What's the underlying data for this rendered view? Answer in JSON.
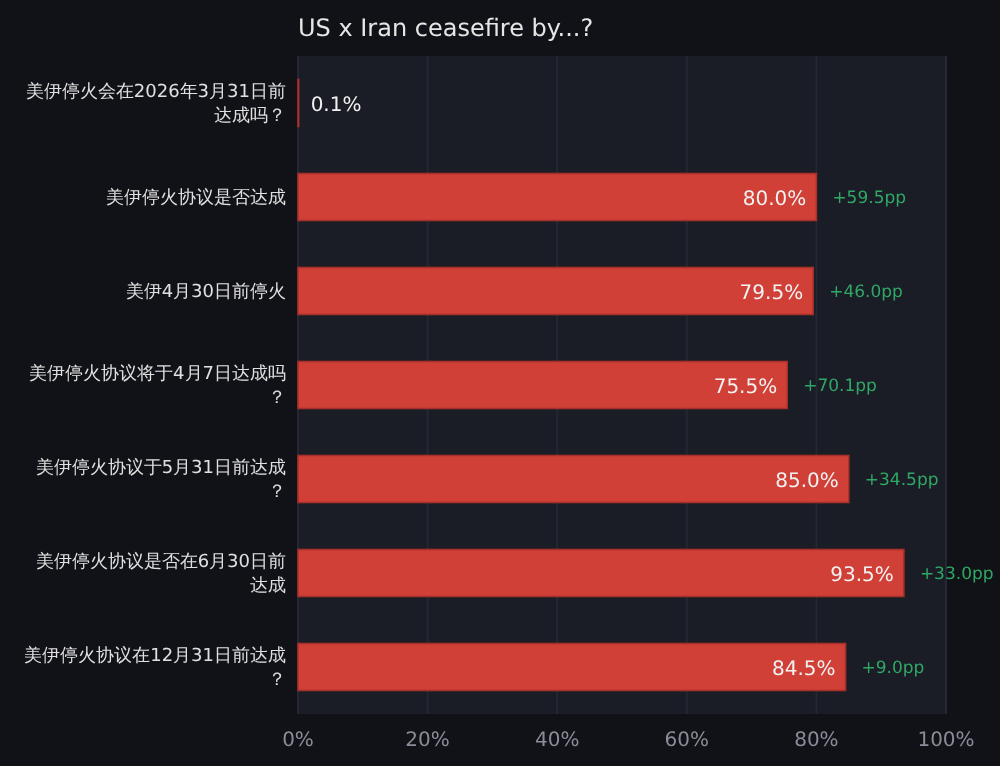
{
  "chart_data": {
    "type": "bar",
    "orientation": "horizontal",
    "title": "US x Iran ceasefire by...?",
    "categories": [
      "美伊停火会在2026年3月31日前达成吗？",
      "美伊停火协议是否达成",
      "美伊4月30日前停火",
      "美伊停火协议将于4月7日达成吗？",
      "美伊停火协议于5月31日前达成？",
      "美伊停火协议是否在6月30日前达成",
      "美伊停火协议在12月31日前达成？"
    ],
    "values": [
      0.1,
      80.0,
      79.5,
      75.5,
      85.0,
      93.5,
      84.5
    ],
    "value_labels": [
      "0.1%",
      "80.0%",
      "79.5%",
      "75.5%",
      "85.0%",
      "93.5%",
      "84.5%"
    ],
    "color": "#d04037",
    "xlim": [
      0,
      100
    ],
    "xticks": [
      {
        "value": 0,
        "label": "0%"
      },
      {
        "value": 20,
        "label": "20%"
      },
      {
        "value": 40,
        "label": "40%"
      },
      {
        "value": 60,
        "label": "60%"
      },
      {
        "value": 80,
        "label": "80%"
      },
      {
        "value": 100,
        "label": "100%"
      }
    ],
    "grid": "x",
    "annotations": [
      {
        "text": "+59.5pp",
        "x": 80.0,
        "y": "美伊停火协议是否达成"
      },
      {
        "text": "+46.0pp",
        "x": 79.5,
        "y": "美伊4月30日前停火"
      },
      {
        "text": "+70.1pp",
        "x": 75.5,
        "y": "美伊停火协议将于4月7日达成吗？"
      },
      {
        "text": "+34.5pp",
        "x": 85.0,
        "y": "美伊停火协议于5月31日前达成？"
      },
      {
        "text": "+33.0pp",
        "x": 93.5,
        "y": "美伊停火协议是否在6月30日前达成"
      },
      {
        "text": "+9.0pp",
        "x": 84.5,
        "y": "美伊停火协议在12月31日前达成？"
      }
    ]
  }
}
